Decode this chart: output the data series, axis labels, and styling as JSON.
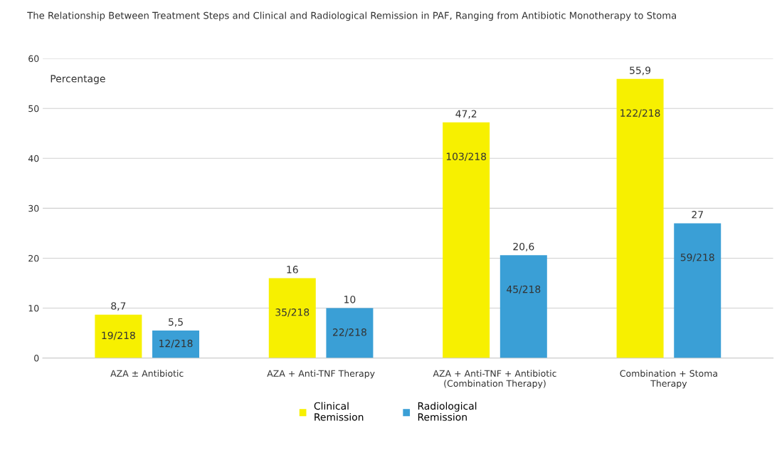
{
  "chart_data": {
    "type": "bar",
    "title": "The Relationship Between Treatment Steps and Clinical and Radiological Remission in PAF, Ranging from Antibiotic Monotherapy to Stoma",
    "ylabel": "Percentage",
    "categories": [
      "AZA ± Antibiotic",
      "AZA + Anti-TNF Therapy",
      "AZA + Anti-TNF + Antibiotic\n(Combination Therapy)",
      "Combination + Stoma\nTherapy"
    ],
    "series": [
      {
        "name": "Clinical\nRemission",
        "color": "#f7f000",
        "values": [
          8.7,
          16,
          47.2,
          55.9
        ],
        "value_labels": [
          "8,7",
          "16",
          "47,2",
          "55,9"
        ]
      },
      {
        "name": "Radiological\nRemission",
        "color": "#3a9fd6",
        "values": [
          5.5,
          10,
          20.6,
          27
        ],
        "value_labels": [
          "5,5",
          "10",
          "20,6",
          "27"
        ]
      }
    ],
    "annotations": [
      "19/218",
      "35/218",
      "103/218",
      "122/218",
      "12/218",
      "22/218",
      "45/218",
      "59/218"
    ],
    "ylim": [
      0,
      60
    ],
    "yticks": [
      0,
      10,
      20,
      30,
      40,
      50,
      60
    ],
    "grid": "y",
    "legend": "bottom"
  }
}
